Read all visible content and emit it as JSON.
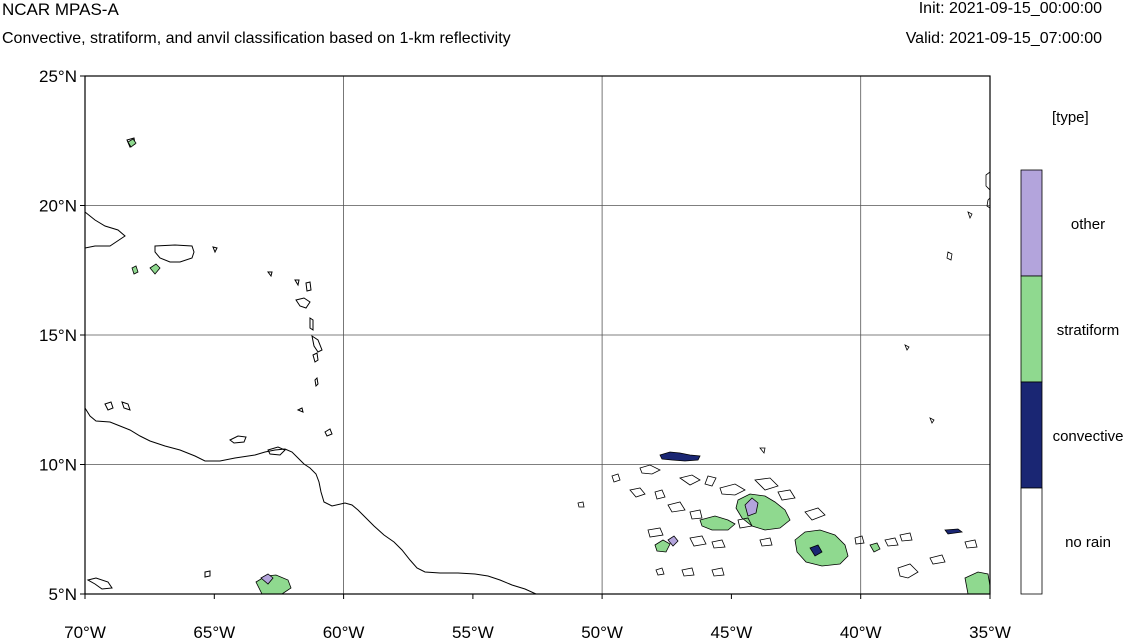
{
  "header": {
    "title": "NCAR MPAS-A",
    "subtitle": "Convective, stratiform, and anvil classification based on 1-km reflectivity",
    "init": "Init: 2021-09-15_00:00:00",
    "valid": "Valid: 2021-09-15_07:00:00"
  },
  "map": {
    "lon_range": [
      -70,
      -35
    ],
    "lat_range": [
      5,
      25
    ],
    "lat_ticks": [
      "5°N",
      "10°N",
      "15°N",
      "20°N",
      "25°N"
    ],
    "lon_ticks": [
      "70°W",
      "65°W",
      "60°W",
      "55°W",
      "50°W",
      "45°W",
      "40°W",
      "35°W"
    ],
    "gridlines": true
  },
  "legend": {
    "title": "[type]",
    "items": [
      {
        "label": "other",
        "color": "#b3a4dc"
      },
      {
        "label": "stratiform",
        "color": "#8fd98f"
      },
      {
        "label": "convective",
        "color": "#1a2673"
      },
      {
        "label": "no rain",
        "color": "#ffffff"
      }
    ]
  }
}
